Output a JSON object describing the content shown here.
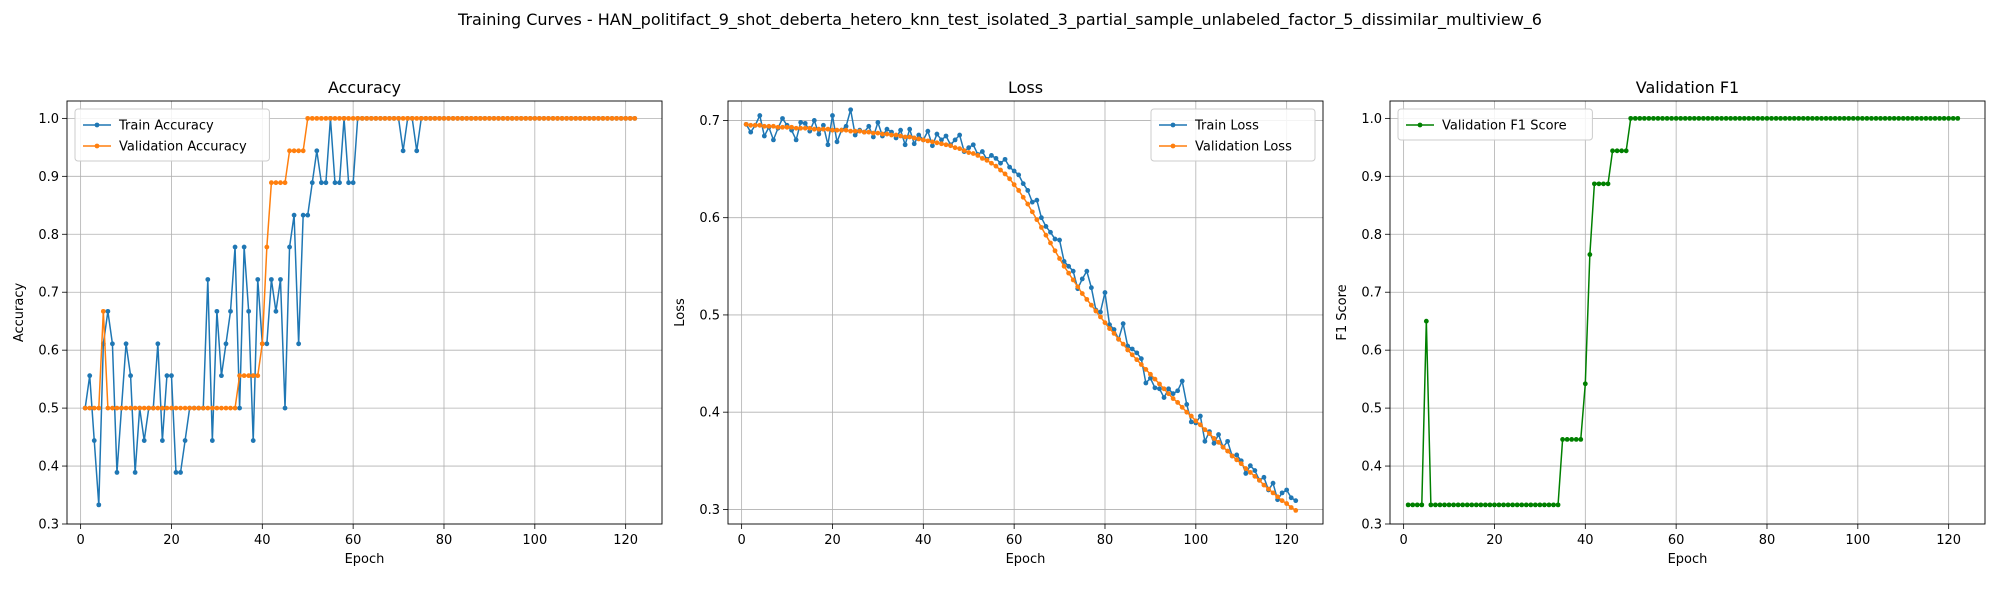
{
  "suptitle": "Training Curves - HAN_politifact_9_shot_deberta_hetero_knn_test_isolated_3_partial_sample_unlabeled_factor_5_dissimilar_multiview_6",
  "colors": {
    "train": "#1f77b4",
    "validation": "#ff7f0e",
    "f1": "#008000",
    "grid": "#b0b0b0"
  },
  "chart_data": [
    {
      "type": "line",
      "title": "Accuracy",
      "xlabel": "Epoch",
      "ylabel": "Accuracy",
      "xlim": [
        -3,
        128
      ],
      "ylim": [
        0.3,
        1.03
      ],
      "xticks": [
        0,
        20,
        40,
        60,
        80,
        100,
        120
      ],
      "yticks": [
        0.3,
        0.4,
        0.5,
        0.6,
        0.7,
        0.8,
        0.9,
        1.0
      ],
      "grid": true,
      "legend_position": "top-left",
      "series": [
        {
          "name": "Train Accuracy",
          "color_key": "train",
          "values": [
            0.5,
            0.556,
            0.444,
            0.333,
            0.611,
            0.667,
            0.611,
            0.389,
            0.5,
            0.611,
            0.556,
            0.389,
            0.5,
            0.444,
            0.5,
            0.5,
            0.611,
            0.444,
            0.556,
            0.556,
            0.389,
            0.389,
            0.444,
            0.5,
            0.5,
            0.5,
            0.5,
            0.722,
            0.444,
            0.667,
            0.556,
            0.611,
            0.667,
            0.778,
            0.5,
            0.778,
            0.667,
            0.444,
            0.722,
            0.611,
            0.611,
            0.722,
            0.667,
            0.722,
            0.5,
            0.778,
            0.833,
            0.611,
            0.833,
            0.833,
            0.889,
            0.944,
            0.889,
            0.889,
            1.0,
            0.889,
            0.889,
            1.0,
            0.889,
            0.889,
            1.0,
            1.0,
            1.0,
            1.0,
            1.0,
            1.0,
            1.0,
            1.0,
            1.0,
            1.0,
            0.944,
            1.0,
            1.0,
            0.944,
            1.0,
            1.0,
            1.0,
            1.0,
            1.0,
            1.0,
            1.0,
            1.0,
            1.0,
            1.0,
            1.0,
            1.0,
            1.0,
            1.0,
            1.0,
            1.0,
            1.0,
            1.0,
            1.0,
            1.0,
            1.0,
            1.0,
            1.0,
            1.0,
            1.0,
            1.0,
            1.0,
            1.0,
            1.0,
            1.0,
            1.0,
            1.0,
            1.0,
            1.0,
            1.0,
            1.0,
            1.0,
            1.0,
            1.0,
            1.0,
            1.0,
            1.0,
            1.0,
            1.0,
            1.0,
            1.0,
            1.0,
            1.0
          ]
        },
        {
          "name": "Validation Accuracy",
          "color_key": "validation",
          "values": [
            0.5,
            0.5,
            0.5,
            0.5,
            0.667,
            0.5,
            0.5,
            0.5,
            0.5,
            0.5,
            0.5,
            0.5,
            0.5,
            0.5,
            0.5,
            0.5,
            0.5,
            0.5,
            0.5,
            0.5,
            0.5,
            0.5,
            0.5,
            0.5,
            0.5,
            0.5,
            0.5,
            0.5,
            0.5,
            0.5,
            0.5,
            0.5,
            0.5,
            0.5,
            0.556,
            0.556,
            0.556,
            0.556,
            0.556,
            0.611,
            0.778,
            0.889,
            0.889,
            0.889,
            0.889,
            0.944,
            0.944,
            0.944,
            0.944,
            1.0,
            1.0,
            1.0,
            1.0,
            1.0,
            1.0,
            1.0,
            1.0,
            1.0,
            1.0,
            1.0,
            1.0,
            1.0,
            1.0,
            1.0,
            1.0,
            1.0,
            1.0,
            1.0,
            1.0,
            1.0,
            1.0,
            1.0,
            1.0,
            1.0,
            1.0,
            1.0,
            1.0,
            1.0,
            1.0,
            1.0,
            1.0,
            1.0,
            1.0,
            1.0,
            1.0,
            1.0,
            1.0,
            1.0,
            1.0,
            1.0,
            1.0,
            1.0,
            1.0,
            1.0,
            1.0,
            1.0,
            1.0,
            1.0,
            1.0,
            1.0,
            1.0,
            1.0,
            1.0,
            1.0,
            1.0,
            1.0,
            1.0,
            1.0,
            1.0,
            1.0,
            1.0,
            1.0,
            1.0,
            1.0,
            1.0,
            1.0,
            1.0,
            1.0,
            1.0,
            1.0,
            1.0,
            1.0
          ]
        }
      ]
    },
    {
      "type": "line",
      "title": "Loss",
      "xlabel": "Epoch",
      "ylabel": "Loss",
      "xlim": [
        -3,
        128
      ],
      "ylim": [
        0.285,
        0.72
      ],
      "xticks": [
        0,
        20,
        40,
        60,
        80,
        100,
        120
      ],
      "yticks": [
        0.3,
        0.4,
        0.5,
        0.6,
        0.7
      ],
      "grid": true,
      "legend_position": "top-right",
      "series": [
        {
          "name": "Train Loss",
          "color_key": "train",
          "values": [
            0.696,
            0.688,
            0.695,
            0.705,
            0.684,
            0.693,
            0.68,
            0.692,
            0.702,
            0.695,
            0.69,
            0.68,
            0.698,
            0.697,
            0.689,
            0.7,
            0.686,
            0.695,
            0.675,
            0.705,
            0.678,
            0.69,
            0.694,
            0.711,
            0.685,
            0.69,
            0.688,
            0.694,
            0.683,
            0.698,
            0.684,
            0.691,
            0.688,
            0.682,
            0.69,
            0.675,
            0.691,
            0.676,
            0.685,
            0.68,
            0.689,
            0.674,
            0.686,
            0.68,
            0.684,
            0.675,
            0.68,
            0.685,
            0.668,
            0.672,
            0.675,
            0.665,
            0.668,
            0.66,
            0.664,
            0.661,
            0.656,
            0.66,
            0.652,
            0.648,
            0.644,
            0.635,
            0.628,
            0.616,
            0.618,
            0.6,
            0.591,
            0.585,
            0.578,
            0.577,
            0.555,
            0.55,
            0.545,
            0.527,
            0.537,
            0.545,
            0.528,
            0.505,
            0.503,
            0.523,
            0.49,
            0.485,
            0.475,
            0.491,
            0.468,
            0.465,
            0.461,
            0.455,
            0.43,
            0.435,
            0.425,
            0.424,
            0.415,
            0.424,
            0.419,
            0.422,
            0.432,
            0.408,
            0.39,
            0.389,
            0.396,
            0.37,
            0.38,
            0.368,
            0.377,
            0.364,
            0.37,
            0.355,
            0.356,
            0.35,
            0.337,
            0.345,
            0.34,
            0.33,
            0.333,
            0.32,
            0.327,
            0.31,
            0.317,
            0.32,
            0.312,
            0.309
          ]
        },
        {
          "name": "Validation Loss",
          "color_key": "validation",
          "values": [
            0.696,
            0.695,
            0.695,
            0.695,
            0.694,
            0.694,
            0.694,
            0.693,
            0.693,
            0.693,
            0.693,
            0.692,
            0.692,
            0.692,
            0.692,
            0.691,
            0.691,
            0.691,
            0.691,
            0.69,
            0.69,
            0.69,
            0.69,
            0.689,
            0.689,
            0.689,
            0.688,
            0.688,
            0.687,
            0.687,
            0.686,
            0.686,
            0.685,
            0.685,
            0.684,
            0.683,
            0.683,
            0.682,
            0.681,
            0.68,
            0.679,
            0.678,
            0.677,
            0.676,
            0.675,
            0.674,
            0.672,
            0.671,
            0.669,
            0.667,
            0.666,
            0.664,
            0.661,
            0.659,
            0.656,
            0.653,
            0.649,
            0.645,
            0.64,
            0.634,
            0.628,
            0.621,
            0.614,
            0.606,
            0.598,
            0.59,
            0.582,
            0.574,
            0.566,
            0.558,
            0.55,
            0.543,
            0.536,
            0.529,
            0.522,
            0.516,
            0.51,
            0.504,
            0.498,
            0.492,
            0.486,
            0.481,
            0.475,
            0.47,
            0.464,
            0.459,
            0.454,
            0.449,
            0.444,
            0.439,
            0.434,
            0.429,
            0.424,
            0.419,
            0.414,
            0.41,
            0.405,
            0.4,
            0.396,
            0.391,
            0.387,
            0.382,
            0.378,
            0.373,
            0.369,
            0.364,
            0.36,
            0.355,
            0.351,
            0.347,
            0.342,
            0.338,
            0.334,
            0.33,
            0.325,
            0.321,
            0.317,
            0.313,
            0.309,
            0.306,
            0.302,
            0.299
          ]
        }
      ]
    },
    {
      "type": "line",
      "title": "Validation F1",
      "xlabel": "Epoch",
      "ylabel": "F1 Score",
      "xlim": [
        -3,
        128
      ],
      "ylim": [
        0.3,
        1.03
      ],
      "xticks": [
        0,
        20,
        40,
        60,
        80,
        100,
        120
      ],
      "yticks": [
        0.3,
        0.4,
        0.5,
        0.6,
        0.7,
        0.8,
        0.9,
        1.0
      ],
      "grid": true,
      "legend_position": "top-left",
      "series": [
        {
          "name": "Validation F1 Score",
          "color_key": "f1",
          "values": [
            0.333,
            0.333,
            0.333,
            0.333,
            0.65,
            0.333,
            0.333,
            0.333,
            0.333,
            0.333,
            0.333,
            0.333,
            0.333,
            0.333,
            0.333,
            0.333,
            0.333,
            0.333,
            0.333,
            0.333,
            0.333,
            0.333,
            0.333,
            0.333,
            0.333,
            0.333,
            0.333,
            0.333,
            0.333,
            0.333,
            0.333,
            0.333,
            0.333,
            0.333,
            0.446,
            0.446,
            0.446,
            0.446,
            0.446,
            0.542,
            0.765,
            0.887,
            0.887,
            0.887,
            0.887,
            0.944,
            0.944,
            0.944,
            0.944,
            1.0,
            1.0,
            1.0,
            1.0,
            1.0,
            1.0,
            1.0,
            1.0,
            1.0,
            1.0,
            1.0,
            1.0,
            1.0,
            1.0,
            1.0,
            1.0,
            1.0,
            1.0,
            1.0,
            1.0,
            1.0,
            1.0,
            1.0,
            1.0,
            1.0,
            1.0,
            1.0,
            1.0,
            1.0,
            1.0,
            1.0,
            1.0,
            1.0,
            1.0,
            1.0,
            1.0,
            1.0,
            1.0,
            1.0,
            1.0,
            1.0,
            1.0,
            1.0,
            1.0,
            1.0,
            1.0,
            1.0,
            1.0,
            1.0,
            1.0,
            1.0,
            1.0,
            1.0,
            1.0,
            1.0,
            1.0,
            1.0,
            1.0,
            1.0,
            1.0,
            1.0,
            1.0,
            1.0,
            1.0,
            1.0,
            1.0,
            1.0,
            1.0,
            1.0,
            1.0,
            1.0,
            1.0,
            1.0
          ]
        }
      ]
    }
  ]
}
